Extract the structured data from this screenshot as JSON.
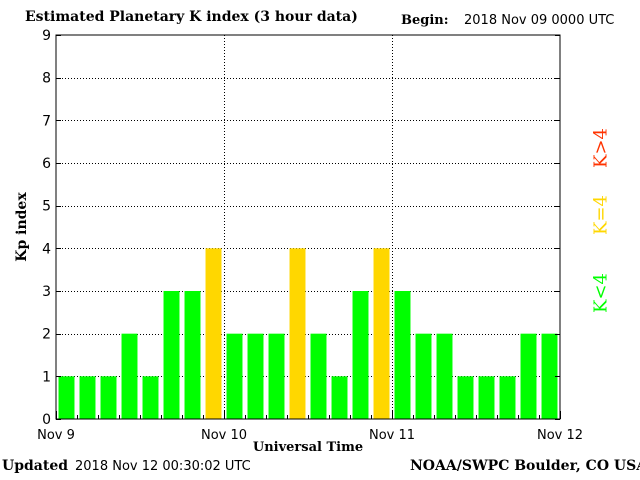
{
  "header": {
    "title": "Estimated Planetary K index (3 hour data)",
    "begin_label": "Begin:",
    "begin_value": "2018 Nov 09 0000 UTC"
  },
  "footer": {
    "updated_label": "Updated",
    "updated_value": "2018 Nov 12 00:30:02 UTC",
    "credit": "NOAA/SWPC Boulder, CO USA"
  },
  "legend": {
    "high": "K>4",
    "equal": "K=4",
    "low": "K<4"
  },
  "colors": {
    "low": "#00ff00",
    "equal": "#ffd700",
    "high": "#ff3300",
    "grid": "#000000"
  },
  "chart_data": {
    "type": "bar",
    "title": "Estimated Planetary K index (3 hour data)",
    "xlabel": "Universal Time",
    "ylabel": "Kp index",
    "ylim": [
      0,
      9
    ],
    "yticks": [
      0,
      1,
      2,
      3,
      4,
      5,
      6,
      7,
      8,
      9
    ],
    "x_tick_labels": [
      "Nov 9",
      "Nov 10",
      "Nov 11",
      "Nov 12"
    ],
    "grid": true,
    "interval_hours": 3,
    "start": "2018 Nov 09 0000 UTC",
    "values": [
      1,
      1,
      1,
      2,
      1,
      3,
      3,
      4,
      2,
      2,
      2,
      4,
      2,
      1,
      3,
      4,
      3,
      2,
      2,
      1,
      1,
      1,
      2,
      2
    ]
  }
}
